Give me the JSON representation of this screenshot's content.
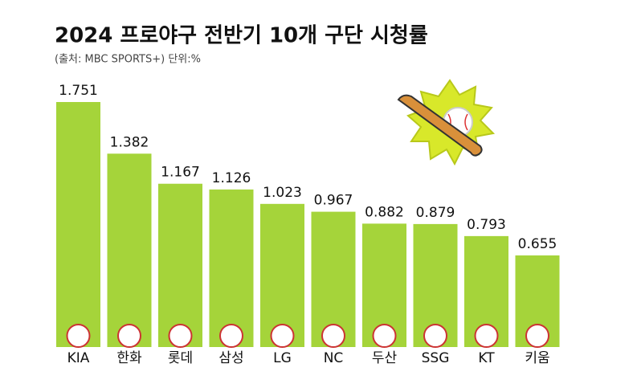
{
  "chart_data": {
    "type": "bar",
    "title": "2024 프로야구 전반기 10개 구단 시청률",
    "subtitle": "(출처: MBC SPORTS+) 단위:%",
    "categories": [
      "KIA",
      "한화",
      "롯데",
      "삼성",
      "LG",
      "NC",
      "두산",
      "SSG",
      "KT",
      "키움"
    ],
    "values": [
      1.751,
      1.382,
      1.167,
      1.126,
      1.023,
      0.967,
      0.882,
      0.879,
      0.793,
      0.655
    ],
    "color": "#a5d43a"
  }
}
